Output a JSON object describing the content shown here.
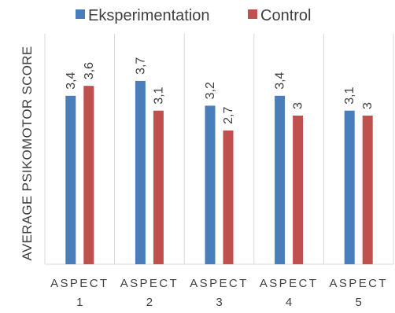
{
  "chart_data": {
    "type": "bar",
    "title": "",
    "xlabel": "",
    "ylabel": "AVERAGE PSIKOMOTOR SCORE",
    "categories": [
      {
        "line1": "ASPECT",
        "line2": "1"
      },
      {
        "line1": "ASPECT",
        "line2": "2"
      },
      {
        "line1": "ASPECT",
        "line2": "3"
      },
      {
        "line1": "ASPECT",
        "line2": "4"
      },
      {
        "line1": "ASPECT",
        "line2": "5"
      }
    ],
    "series": [
      {
        "name": "Eksperimentation",
        "color": "#4a7ebb",
        "values": [
          3.4,
          3.7,
          3.2,
          3.4,
          3.1
        ],
        "labels": [
          "3,4",
          "3,7",
          "3,2",
          "3,4",
          "3,1"
        ]
      },
      {
        "name": "Control",
        "color": "#c0504d",
        "values": [
          3.6,
          3.1,
          2.7,
          3.0,
          3.0
        ],
        "labels": [
          "3,6",
          "3,1",
          "2,7",
          "3",
          "3"
        ]
      }
    ],
    "ylim": [
      0,
      5
    ],
    "grid": "vertical separators",
    "legend_position": "top"
  }
}
